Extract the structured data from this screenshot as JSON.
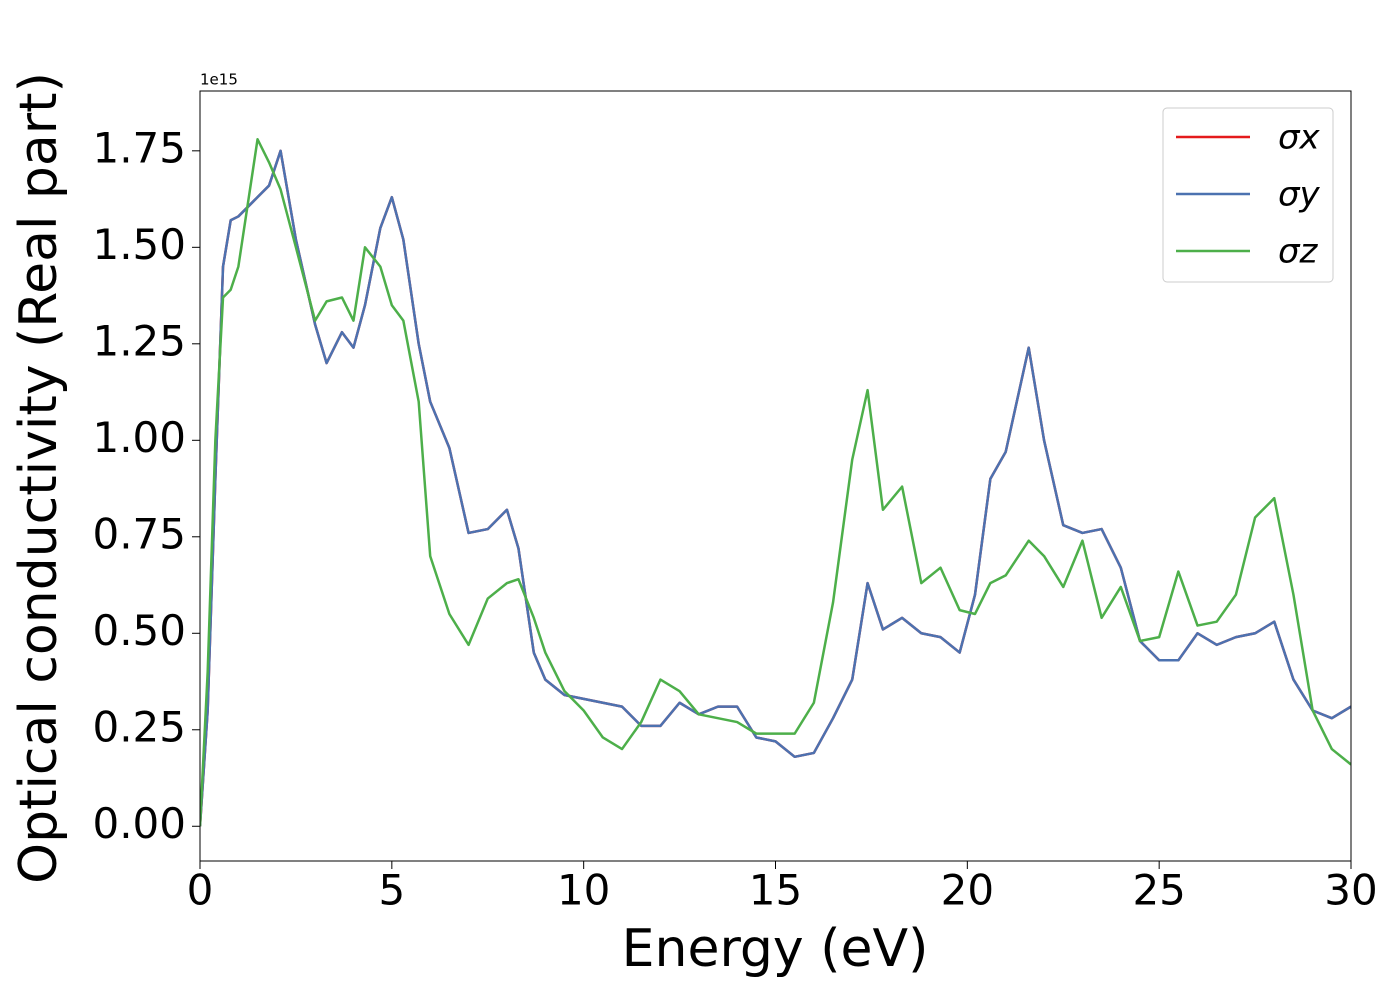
{
  "chart_data": {
    "type": "line",
    "x_label": "Energy (eV)",
    "y_label": "Optical conductivity (Real part)",
    "y_offset_label": "1e15",
    "xlim": [
      0,
      30
    ],
    "xticks": [
      0,
      5,
      10,
      15,
      20,
      25,
      30
    ],
    "ylim": [
      -0.09,
      1.905
    ],
    "yticks": [
      {
        "value": 0,
        "label": "0.00"
      },
      0.25,
      {
        "value": 0.5,
        "label": "0.50"
      },
      0.75,
      {
        "value": 1,
        "label": "1.00"
      },
      1.25,
      {
        "value": 1.5,
        "label": "1.50"
      },
      1.75
    ],
    "legend": "upper right",
    "x": [
      0,
      0.2,
      0.4,
      0.6,
      0.8,
      1.0,
      1.5,
      1.8,
      2.1,
      2.5,
      3.0,
      3.3,
      3.7,
      4.0,
      4.3,
      4.7,
      5.0,
      5.3,
      5.7,
      6.0,
      6.5,
      7.0,
      7.5,
      8.0,
      8.3,
      8.7,
      9.0,
      9.5,
      10.0,
      10.5,
      11.0,
      11.5,
      12.0,
      12.5,
      13.0,
      13.5,
      14.0,
      14.5,
      15.0,
      15.5,
      16.0,
      16.5,
      17.0,
      17.4,
      17.8,
      18.3,
      18.8,
      19.3,
      19.8,
      20.2,
      20.6,
      21.0,
      21.6,
      22.0,
      22.5,
      23.0,
      23.5,
      24.0,
      24.5,
      25.0,
      25.5,
      26.0,
      26.5,
      27.0,
      27.5,
      28.0,
      28.5,
      29.0,
      29.5,
      30.0
    ],
    "series": [
      {
        "name": "σx",
        "color": "#e41a1c",
        "values": [
          0,
          0.3,
          0.9,
          1.45,
          1.57,
          1.58,
          1.63,
          1.66,
          1.75,
          1.52,
          1.3,
          1.2,
          1.28,
          1.24,
          1.35,
          1.55,
          1.63,
          1.52,
          1.25,
          1.1,
          0.98,
          0.76,
          0.77,
          0.82,
          0.72,
          0.45,
          0.38,
          0.34,
          0.33,
          0.32,
          0.31,
          0.26,
          0.26,
          0.32,
          0.29,
          0.31,
          0.31,
          0.23,
          0.22,
          0.18,
          0.19,
          0.28,
          0.38,
          0.63,
          0.51,
          0.54,
          0.5,
          0.49,
          0.45,
          0.6,
          0.9,
          0.97,
          1.24,
          1.0,
          0.78,
          0.76,
          0.77,
          0.67,
          0.48,
          0.43,
          0.43,
          0.5,
          0.47,
          0.49,
          0.5,
          0.53,
          0.38,
          0.3,
          0.28,
          0.31
        ]
      },
      {
        "name": "σy",
        "color": "#4c72b0",
        "values": [
          0,
          0.3,
          0.9,
          1.45,
          1.57,
          1.58,
          1.63,
          1.66,
          1.75,
          1.52,
          1.3,
          1.2,
          1.28,
          1.24,
          1.35,
          1.55,
          1.63,
          1.52,
          1.25,
          1.1,
          0.98,
          0.76,
          0.77,
          0.82,
          0.72,
          0.45,
          0.38,
          0.34,
          0.33,
          0.32,
          0.31,
          0.26,
          0.26,
          0.32,
          0.29,
          0.31,
          0.31,
          0.23,
          0.22,
          0.18,
          0.19,
          0.28,
          0.38,
          0.63,
          0.51,
          0.54,
          0.5,
          0.49,
          0.45,
          0.6,
          0.9,
          0.97,
          1.24,
          1.0,
          0.78,
          0.76,
          0.77,
          0.67,
          0.48,
          0.43,
          0.43,
          0.5,
          0.47,
          0.49,
          0.5,
          0.53,
          0.38,
          0.3,
          0.28,
          0.31
        ]
      },
      {
        "name": "σz",
        "color": "#4daf4a",
        "values": [
          0,
          0.4,
          1.0,
          1.37,
          1.39,
          1.45,
          1.78,
          1.72,
          1.65,
          1.5,
          1.31,
          1.36,
          1.37,
          1.31,
          1.5,
          1.45,
          1.35,
          1.31,
          1.1,
          0.7,
          0.55,
          0.47,
          0.59,
          0.63,
          0.64,
          0.54,
          0.45,
          0.35,
          0.3,
          0.23,
          0.2,
          0.27,
          0.38,
          0.35,
          0.29,
          0.28,
          0.27,
          0.24,
          0.24,
          0.24,
          0.32,
          0.58,
          0.95,
          1.13,
          0.82,
          0.88,
          0.63,
          0.67,
          0.56,
          0.55,
          0.63,
          0.65,
          0.74,
          0.7,
          0.62,
          0.74,
          0.54,
          0.62,
          0.48,
          0.49,
          0.66,
          0.52,
          0.53,
          0.6,
          0.8,
          0.85,
          0.6,
          0.3,
          0.2,
          0.16
        ]
      }
    ]
  }
}
